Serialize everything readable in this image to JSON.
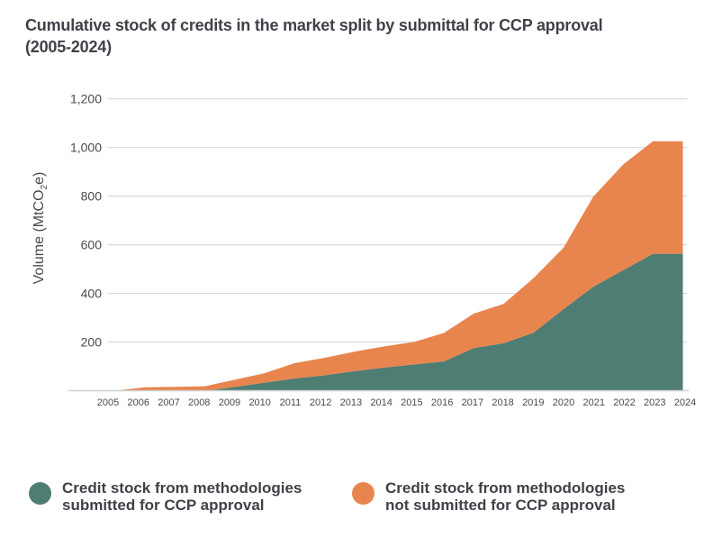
{
  "chart_data": {
    "type": "area",
    "stacked": true,
    "title_line1": "Cumulative stock of credits in the market split by submittal for CCP approval",
    "title_line2": "(2005-2024)",
    "xlabel": "",
    "ylabel_main": "Volume (MtCO",
    "ylabel_sub": "2",
    "ylabel_end": "e)",
    "ylim": [
      0,
      1200
    ],
    "yticks": [
      200,
      400,
      600,
      800,
      1000,
      1200
    ],
    "ytick_labels": [
      "200",
      "400",
      "600",
      "800",
      "1,000",
      "1,200"
    ],
    "grid": true,
    "legend_position": "bottom",
    "x": [
      "2005",
      "2006",
      "2007",
      "2008",
      "2009",
      "2010",
      "2011",
      "2012",
      "2013",
      "2014",
      "2015",
      "2016",
      "2017",
      "2018",
      "2019",
      "2020",
      "2021",
      "2022",
      "2023",
      "2024"
    ],
    "series": [
      {
        "name": "Credit stock from methodologies submitted for CCP approval",
        "legend_line1": "Credit stock from methodologies",
        "legend_line2": "submitted for CCP approval",
        "color": "#4e7d74",
        "values": [
          0,
          0,
          0,
          0,
          15,
          33,
          50,
          63,
          80,
          95,
          108,
          120,
          175,
          195,
          238,
          335,
          427,
          495,
          563,
          563
        ]
      },
      {
        "name": "Credit stock from methodologies not submitted for CCP approval",
        "legend_line1": "Credit stock from methodologies",
        "legend_line2": "not submitted for CCP approval",
        "color": "#e8854e",
        "values": [
          0,
          14,
          16,
          18,
          30,
          39,
          63,
          72,
          80,
          87,
          92,
          117,
          142,
          162,
          225,
          252,
          370,
          435,
          463,
          463
        ]
      }
    ]
  }
}
